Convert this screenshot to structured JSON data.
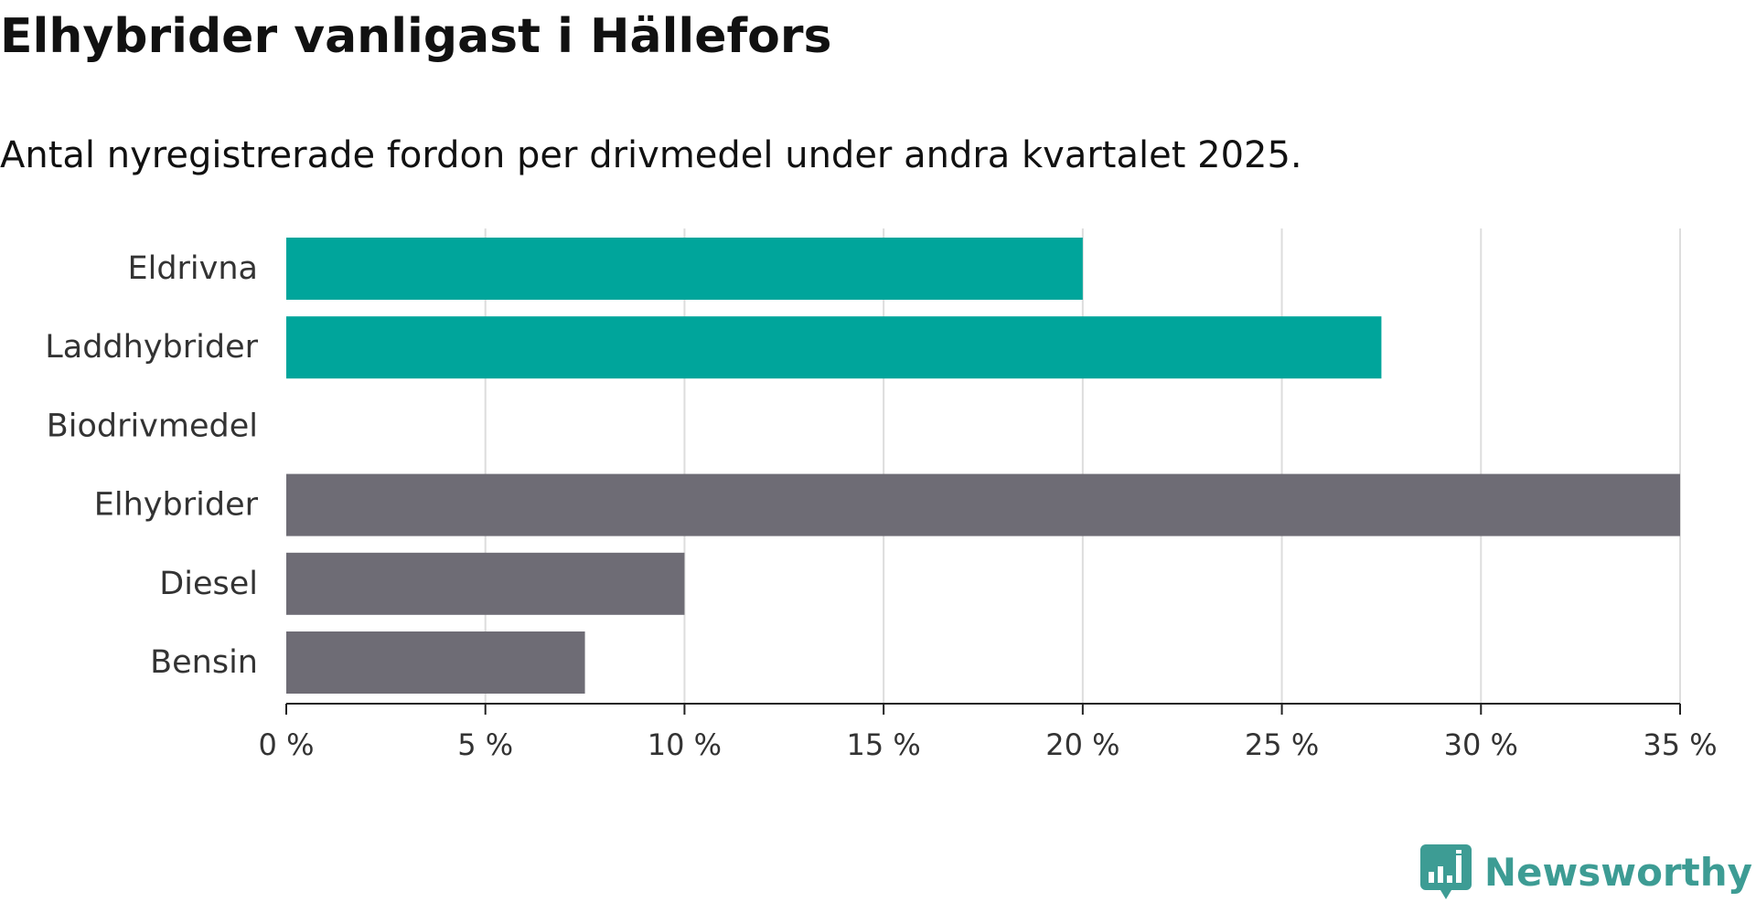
{
  "header": {
    "title": "Elhybrider vanligast i Hällefors",
    "subtitle": "Antal nyregistrerade fordon per drivmedel under andra kvartalet 2025."
  },
  "chart_data": {
    "type": "bar",
    "orientation": "horizontal",
    "title": "Elhybrider vanligast i Hällefors",
    "subtitle": "Antal nyregistrerade fordon per drivmedel under andra kvartalet 2025.",
    "categories": [
      "Eldrivna",
      "Laddhybrider",
      "Biodrivmedel",
      "Elhybrider",
      "Diesel",
      "Bensin"
    ],
    "values": [
      20,
      27.5,
      0,
      35,
      10,
      7.5
    ],
    "unit": "%",
    "xlim": [
      0,
      35
    ],
    "xticks": [
      0,
      5,
      10,
      15,
      20,
      25,
      30,
      35
    ],
    "xtick_labels": [
      "0 %",
      "5 %",
      "10 %",
      "15 %",
      "20 %",
      "25 %",
      "30 %",
      "35 %"
    ],
    "xlabel": "",
    "ylabel": "",
    "grid": "vertical",
    "legend": "none",
    "bar_colors": [
      "#00a59b",
      "#00a59b",
      "#00a59b",
      "#6e6c75",
      "#6e6c75",
      "#6e6c75"
    ]
  },
  "colors": {
    "accent": "#00a59b",
    "neutral": "#6e6c75",
    "gridline": "#dddddd",
    "axis": "#222222",
    "text": "#111111",
    "brand": "#3d9c94"
  },
  "branding": {
    "name": "Newsworthy",
    "icon": "chart-speech-bubble-icon"
  }
}
